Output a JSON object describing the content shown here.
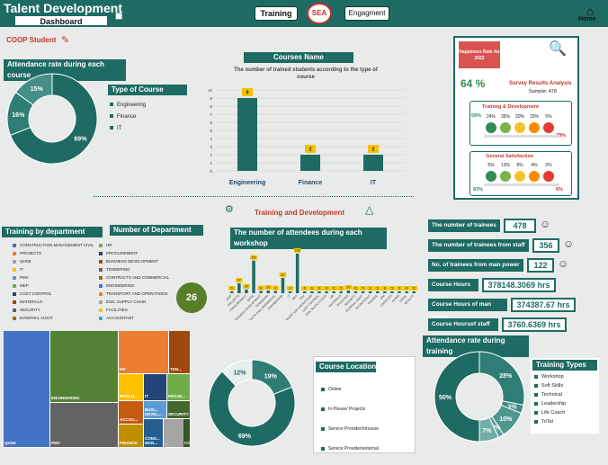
{
  "header": {
    "title": "Talent Development",
    "dashboard_tab": "Dashboard",
    "training_button": "Training",
    "engagement_button": "Engagment",
    "logo_text": "SEA",
    "home_label": "Home"
  },
  "coop": {
    "label": "COOP Student"
  },
  "attendance_course": {
    "title": "Attendance rate during each course",
    "legend_title": "Type of Course",
    "legend": [
      "Engineering",
      "Finance",
      "IT"
    ],
    "chart_data": {
      "type": "pie",
      "labels": [
        "Engineering",
        "Finance",
        "IT"
      ],
      "values": [
        69,
        16,
        15
      ],
      "value_labels": [
        "69%",
        "16%",
        "15%"
      ]
    }
  },
  "courses": {
    "title": "Courses Name",
    "subtitle": "The number of trained students according to the type of course",
    "chart_data": {
      "type": "bar",
      "categories": [
        "Engineering",
        "Finance",
        "IT"
      ],
      "values": [
        9,
        2,
        2
      ],
      "ylim": [
        0,
        10
      ],
      "yticks": [
        "0",
        "1",
        "2",
        "3",
        "4",
        "5",
        "6",
        "7",
        "8",
        "9",
        "10"
      ]
    }
  },
  "survey": {
    "happiness_label": "Happiness Rate for 2022",
    "happiness_value": "64 %",
    "title": "Survey Results Analysis",
    "sample": "Sample: 478",
    "td_title": "Training & Development",
    "td_left": "59%",
    "td_right": "28%",
    "td_faces": [
      "24%",
      "35%",
      "20%",
      "15%",
      "5%"
    ],
    "gs_title": "General Satisfaction",
    "gs_left": "83%",
    "gs_right": "6%",
    "gs_faces": [
      "5%",
      "13%",
      "8%",
      "4%",
      "2%"
    ]
  },
  "training_dev": {
    "title": "Training and Development"
  },
  "department": {
    "title": "Training by department",
    "count_title": "Number of Department",
    "count_value": "26",
    "legend_left": [
      "CONSTRUCTION MANAGEMENT CIVIL",
      "PROJECTS",
      "QHSE",
      "IT",
      "PMV",
      "MEP",
      "COST CONTROL",
      "MATERIALS",
      "SECURITY",
      "INTERNAL AUDIT"
    ],
    "legend_right": [
      "HR",
      "PROCUREMENT",
      "BUSINESS DEVELOPMENT",
      "TENDERING",
      "CONTRACTS AND COMMERCIAL",
      "ENGINEERING",
      "TRANSPORT AND OPERATIONS",
      "ESIC SUPPLY CHAIN",
      "FACILITIES",
      "ACCOUNTANT"
    ],
    "colors": [
      "#4472c4",
      "#ed7d31",
      "#a5a5a5",
      "#ffc000",
      "#5b9bd5",
      "#70ad47",
      "#264478",
      "#9e480e",
      "#636363",
      "#997300"
    ],
    "treemap": [
      {
        "label": "QHSE",
        "color": "#4472c4"
      },
      {
        "label": "ENGINEERING",
        "color": "#548235"
      },
      {
        "label": "PMV",
        "color": "#636363"
      },
      {
        "label": "HR",
        "color": "#ed7d31"
      },
      {
        "label": "TEN...",
        "color": "#9e480e"
      },
      {
        "label": "PROCU...",
        "color": "#ffc000"
      },
      {
        "label": "IT",
        "color": "#264478"
      },
      {
        "label": "PROJE...",
        "color": "#70ad47"
      },
      {
        "label": "BUSI... DEVEL...",
        "color": "#5b9bd5"
      },
      {
        "label": "SECURITY",
        "color": "#43682b"
      },
      {
        "label": "ACCOU...",
        "color": "#c55a11"
      },
      {
        "label": "CONS... MAN...",
        "color": "#255e91"
      },
      {
        "label": "...",
        "color": "#a5a5a5"
      },
      {
        "label": "FINANCE",
        "color": "#bf8f00"
      },
      {
        "label": "CONT...",
        "color": "#375623"
      }
    ]
  },
  "workshops": {
    "title": "The number of attendees during each workshop",
    "chart_data": {
      "type": "bar",
      "categories": [
        "CONSTRUCTION MANAGEMENT",
        "PROJECTS",
        "PROCUREMENT",
        "QHSE",
        "BUSINESS DEVELOPMENT",
        "TENDERING",
        "CONTRACTS AND COMMERCIAL",
        "ENGINEERING",
        "IT",
        "MEP",
        "PMV",
        "TRANSPORT AND OPERATIONS",
        "COST CONTROL",
        "ESIC SUPPLY CHAIN",
        "HR",
        "MATERIALS",
        "FACILITIES",
        "SECURITY",
        "INTERNAL AUDIT",
        "ACCOUNTANT",
        "FINANCE",
        "BIM",
        "LOGISTICS",
        "ADMIN",
        "LEGAL",
        "QUALITY"
      ],
      "values": [
        6,
        37,
        14,
        122,
        8,
        10,
        8,
        57,
        4,
        148,
        6,
        6,
        6,
        6,
        5,
        5,
        10,
        5,
        5,
        6,
        6,
        6,
        5,
        5,
        6,
        5
      ],
      "value_labels": [
        "6",
        "37",
        "14",
        "122",
        "8",
        "10",
        "8",
        "57",
        "4",
        "148",
        "6",
        "6",
        "6",
        "6",
        "5",
        "5",
        "10",
        "5",
        "5",
        "6",
        "6",
        "6",
        "5",
        "5",
        "6",
        "5"
      ]
    }
  },
  "stats": [
    {
      "label": "The number of trainees",
      "value": "478"
    },
    {
      "label": "The number of trainees from staff",
      "value": "356"
    },
    {
      "label": "No. of trainees from man power",
      "value": "122"
    },
    {
      "label": "Course Hours",
      "value": "378148.3069 hrs"
    },
    {
      "label": "Course Hours of man power",
      "value": "374387.67 hrs"
    },
    {
      "label": "Course Hoursof staff",
      "value": "3760.6369 hrs"
    }
  ],
  "course_location": {
    "title": "Course Location",
    "legend": [
      "Online",
      "In-House/ Projects",
      "Service Provider/Inhouse",
      "Service Provider/external"
    ],
    "chart_data": {
      "type": "pie",
      "labels": [
        "Online",
        "In-House/ Projects",
        "Service Provider/Inhouse",
        "Service Provider/external"
      ],
      "values": [
        19,
        69,
        0,
        12
      ],
      "value_labels": [
        "19%",
        "69%",
        "0%",
        "12%"
      ]
    }
  },
  "attendance_training": {
    "title": "Attendance rate during training",
    "legend_title": "Training Types",
    "legend": [
      "Workshop",
      "Soft Skills",
      "Technical",
      "Leadership",
      "Life Coach",
      "ToTal"
    ],
    "chart_data": {
      "type": "pie",
      "labels": [
        "Workshop",
        "Soft Skills",
        "Technical",
        "Leadership",
        "Life Coach",
        "ToTal"
      ],
      "values": [
        28,
        3,
        10,
        2,
        7,
        50
      ],
      "value_labels": [
        "28%",
        "3%",
        "10%",
        "2%",
        "7%",
        "50%"
      ]
    }
  }
}
